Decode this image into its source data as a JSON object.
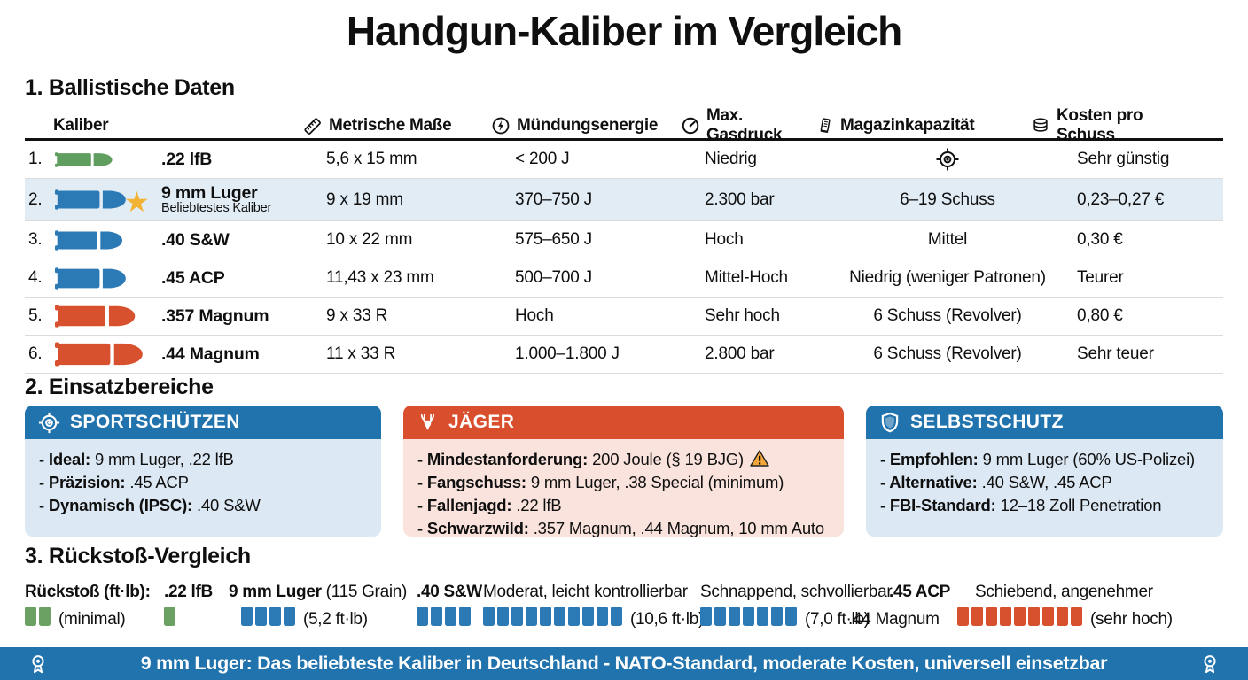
{
  "title": "Handgun-Kaliber im Vergleich",
  "colors": {
    "accent_blue": "#2173ae",
    "accent_red": "#d94f2e",
    "bullet_green": "#5f9e5f",
    "bullet_blue": "#2b79b5",
    "bullet_red": "#d8512f",
    "highlight_row": "#e1ecf5",
    "body_blue": "#dce8f4",
    "body_red": "#fae3dc",
    "star_gold": "#f2b233"
  },
  "icons": {
    "star": "★"
  },
  "ballistics": {
    "heading": "1. Ballistische Daten",
    "columns": {
      "kaliber": "Kaliber",
      "masse": "Metrische Maße",
      "energie": "Mündungsenergie",
      "gasdruck": "Max. Gasdruck",
      "magazin": "Magazinkapazität",
      "kosten": "Kosten pro Schuss"
    },
    "rows": [
      {
        "num": "1.",
        "name": ".22 lfB",
        "sub": "",
        "masse": "5,6 x 15 mm",
        "energie": "< 200 J",
        "gasdruck": "Niedrig",
        "magazin": "",
        "kosten": "Sehr günstig"
      },
      {
        "num": "2.",
        "name": "9 mm Luger",
        "sub": "Beliebtestes Kaliber",
        "masse": "9 x 19 mm",
        "energie": "370–750 J",
        "gasdruck": "2.300 bar",
        "magazin": "6–19 Schuss",
        "kosten": "0,23–0,27 €"
      },
      {
        "num": "3.",
        "name": ".40 S&W",
        "sub": "",
        "masse": "10 x 22 mm",
        "energie": "575–650 J",
        "gasdruck": "Hoch",
        "magazin": "Mittel",
        "kosten": "0,30 €"
      },
      {
        "num": "4.",
        "name": ".45 ACP",
        "sub": "",
        "masse": "11,43 x 23 mm",
        "energie": "500–700 J",
        "gasdruck": "Mittel-Hoch",
        "magazin": "Niedrig (weniger Patronen)",
        "kosten": "Teurer"
      },
      {
        "num": "5.",
        "name": ".357 Magnum",
        "sub": "",
        "masse": "9 x 33 R",
        "energie": "Hoch",
        "gasdruck": "Sehr hoch",
        "magazin": "6 Schuss (Revolver)",
        "kosten": "0,80 €"
      },
      {
        "num": "6.",
        "name": ".44 Magnum",
        "sub": "",
        "masse": "11 x 33 R",
        "energie": "1.000–1.800 J",
        "gasdruck": "2.800 bar",
        "magazin": "6 Schuss (Revolver)",
        "kosten": "Sehr teuer"
      }
    ]
  },
  "einsatz": {
    "heading": "2. Einsatzbereiche",
    "boxes": [
      {
        "title": "SPORTSCHÜTZEN",
        "lines": [
          {
            "label": "- Ideal:",
            "text": "9 mm Luger, .22 lfB"
          },
          {
            "label": "- Präzision:",
            "text": ".45 ACP"
          },
          {
            "label": "- Dynamisch (IPSC):",
            "text": ".40 S&W"
          }
        ]
      },
      {
        "title": "JÄGER",
        "lines": [
          {
            "label": "- Mindestanforderung:",
            "text": "200 Joule (§ 19 BJG)"
          },
          {
            "label": "- Fangschuss:",
            "text": "9 mm Luger, .38 Special (minimum)"
          },
          {
            "label": "- Fallenjagd:",
            "text": ".22 lfB"
          },
          {
            "label": "- Schwarzwild:",
            "text": ".357 Magnum, .44 Magnum, 10 mm Auto"
          }
        ]
      },
      {
        "title": "SELBSTSCHUTZ",
        "lines": [
          {
            "label": "- Empfohlen:",
            "text": "9 mm Luger (60% US-Polizei)"
          },
          {
            "label": "- Alternative:",
            "text": ".40 S&W, .45 ACP"
          },
          {
            "label": "- FBI-Standard:",
            "text": "12–18 Zoll Penetration"
          }
        ]
      }
    ]
  },
  "rueckstoss": {
    "heading": "3. Rückstoß-Vergleich",
    "labels": [
      {
        "text": "Rückstoß (ft·lb):"
      },
      {
        "text": ".22 lfB"
      },
      {
        "text": "9 mm Luger",
        "suffix": " (115 Grain)"
      },
      {
        "text": ".40 S&W"
      },
      {
        "text": "Moderat, leicht kontrollierbar"
      },
      {
        "text": "Schnappend, schvollierbar"
      },
      {
        "text": ".45 ACP"
      },
      {
        "text": "Schiebend, angenehmer"
      }
    ],
    "groups": [
      {
        "count": 2,
        "color": "green",
        "label": "(minimal)"
      },
      {
        "count": 1,
        "color": "green",
        "label": ""
      },
      {
        "count": 4,
        "color": "blue",
        "label": "(5,2 ft·lb)"
      },
      {
        "count": 4,
        "color": "blue",
        "label": ""
      },
      {
        "count": 10,
        "color": "blue",
        "label": "(10,6 ft·lb)"
      },
      {
        "count": 7,
        "color": "blue",
        "label": "(7,0 ft·lb)"
      },
      {
        "count": 0,
        "color": "none",
        "label": ".44 Magnum"
      },
      {
        "count": 9,
        "color": "red",
        "label": "(sehr hoch)"
      }
    ]
  },
  "footer": {
    "text": "9 mm Luger: Das beliebteste Kaliber in Deutschland - NATO-Standard, moderate Kosten, universell einsetzbar"
  },
  "chart_data": {
    "type": "table",
    "title": "Handgun-Kaliber im Vergleich",
    "columns": [
      "Kaliber",
      "Metrische Maße",
      "Mündungsenergie",
      "Max. Gasdruck",
      "Magazinkapazität",
      "Kosten pro Schuss"
    ],
    "rows": [
      [
        ".22 lfB",
        "5,6 x 15 mm",
        "< 200 J",
        "Niedrig",
        "",
        "Sehr günstig"
      ],
      [
        "9 mm Luger",
        "9 x 19 mm",
        "370–750 J",
        "2.300 bar",
        "6–19 Schuss",
        "0,23–0,27 €"
      ],
      [
        ".40 S&W",
        "10 x 22 mm",
        "575–650 J",
        "Hoch",
        "Mittel",
        "0,30 €"
      ],
      [
        ".45 ACP",
        "11,43 x 23 mm",
        "500–700 J",
        "Mittel-Hoch",
        "Niedrig (weniger Patronen)",
        "Teurer"
      ],
      [
        ".357 Magnum",
        "9 x 33 R",
        "Hoch",
        "Sehr hoch",
        "6 Schuss (Revolver)",
        "0,80 €"
      ],
      [
        ".44 Magnum",
        "11 x 33 R",
        "1.000–1.800 J",
        "2.800 bar",
        "6 Schuss (Revolver)",
        "Sehr teuer"
      ]
    ],
    "recoil_bars": {
      "type": "bar",
      "categories": [
        ".22 lfB",
        ".22 lfB (2)",
        "9 mm Luger",
        ".40 S&W",
        ".40 S&W (10,6 ft·lb)",
        ".45 ACP (7,0 ft·lb)",
        ".44 Magnum"
      ],
      "values": [
        2,
        1,
        4,
        4,
        10,
        7,
        9
      ],
      "value_labels": [
        "(minimal)",
        "",
        "(5,2 ft·lb)",
        "",
        "(10,6 ft·lb)",
        "(7,0 ft·lb)",
        "(sehr hoch)"
      ]
    }
  }
}
